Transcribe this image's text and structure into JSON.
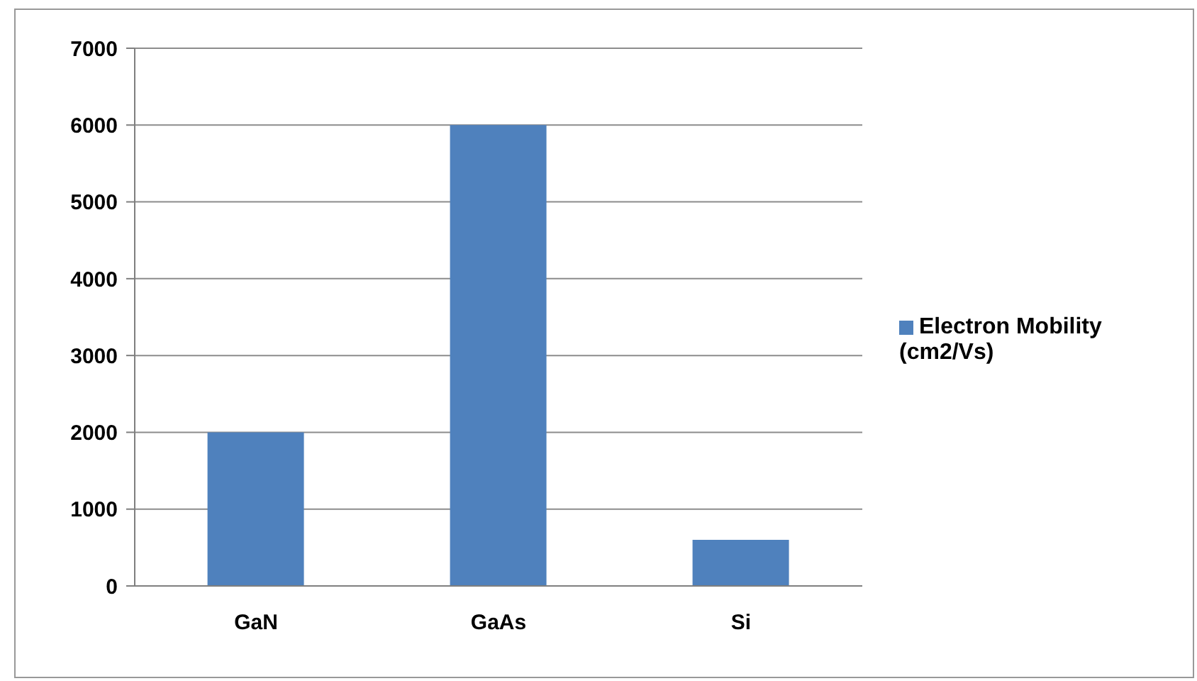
{
  "chart_data": {
    "type": "bar",
    "categories": [
      "GaN",
      "GaAs",
      "Si"
    ],
    "series": [
      {
        "name": "Electron Mobility (cm2/Vs)",
        "color": "#4f81bd",
        "values": [
          2000,
          6000,
          600
        ]
      }
    ],
    "ylim": [
      0,
      7000
    ],
    "yticks": [
      0,
      1000,
      2000,
      3000,
      4000,
      5000,
      6000,
      7000
    ],
    "grid": "y",
    "legend": "right"
  }
}
